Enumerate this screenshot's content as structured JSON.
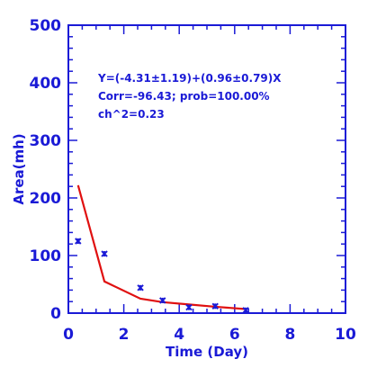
{
  "chart_data": {
    "type": "scatter",
    "xlabel": "Time (Day)",
    "ylabel": "Area(mh)",
    "xlim": [
      0,
      10
    ],
    "ylim": [
      0,
      500
    ],
    "xticks": [
      0,
      2,
      4,
      6,
      8,
      10
    ],
    "yticks": [
      0,
      100,
      200,
      300,
      400,
      500
    ],
    "xticklabels": [
      "0",
      "2",
      "4",
      "6",
      "8",
      "10"
    ],
    "yticklabels": [
      "0",
      "100",
      "200",
      "300",
      "400",
      "500"
    ],
    "annotations": [
      "Y=(-4.31±1.19)+(0.96±0.79)X",
      "Corr=-96.43;   prob=100.00%",
      "ch^2=0.23"
    ],
    "series": [
      {
        "type": "scatter",
        "marker": "asterisk",
        "color": "#1a1ad6",
        "x": [
          0.35,
          1.3,
          2.6,
          3.4,
          4.35,
          5.3,
          6.4
        ],
        "y": [
          125,
          103,
          44,
          22,
          10,
          12,
          5
        ]
      },
      {
        "type": "line",
        "color": "#e01010",
        "x": [
          0.35,
          1.3,
          2.6,
          3.4,
          4.35,
          5.3,
          6.4
        ],
        "y": [
          222,
          55,
          25,
          19,
          15,
          11,
          7
        ]
      }
    ]
  }
}
